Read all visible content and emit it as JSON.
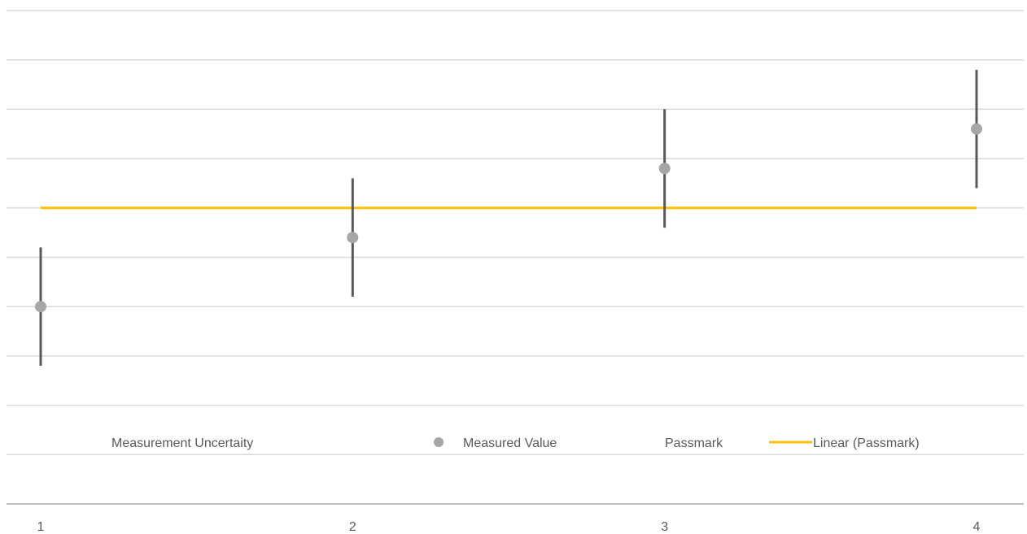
{
  "chart_data": {
    "type": "scatter",
    "x": [
      1,
      2,
      3,
      4
    ],
    "x_tick_labels": [
      "1",
      "2",
      "3",
      "4"
    ],
    "grid": true,
    "legend_placement": "bottom",
    "series": [
      {
        "name": "Measured Value",
        "kind": "points",
        "x": [
          1,
          2,
          3,
          4
        ],
        "y": [
          4.0,
          5.4,
          6.8,
          7.6
        ],
        "color": "#a6a6a6"
      },
      {
        "name": "Measurement Uncertaity",
        "kind": "error_bars",
        "x": [
          1,
          2,
          3,
          4
        ],
        "low": [
          2.8,
          4.2,
          5.6,
          6.4
        ],
        "high": [
          5.2,
          6.6,
          8.0,
          8.8
        ],
        "color": "#595959"
      },
      {
        "name": "Passmark",
        "kind": "points",
        "x": [
          1,
          2,
          3,
          4
        ],
        "y": [
          6,
          6,
          6,
          6
        ],
        "color": "#ffc000"
      },
      {
        "name": "Linear (Passmark)",
        "kind": "trendline",
        "x": [
          1,
          4
        ],
        "y": [
          6,
          6
        ],
        "color": "#ffc000"
      }
    ],
    "ylim": [
      0,
      10
    ]
  },
  "legend": [
    {
      "key": "uncertainty",
      "label": "Measurement Uncertaity",
      "symbol": "none"
    },
    {
      "key": "measured",
      "label": "Measured Value",
      "symbol": "dot"
    },
    {
      "key": "passmark",
      "label": "Passmark",
      "symbol": "none"
    },
    {
      "key": "linear",
      "label": "Linear (Passmark)",
      "symbol": "line"
    }
  ],
  "colors": {
    "grid": "#d9d9d9",
    "axis": "#bfbfbf",
    "text": "#595959"
  }
}
